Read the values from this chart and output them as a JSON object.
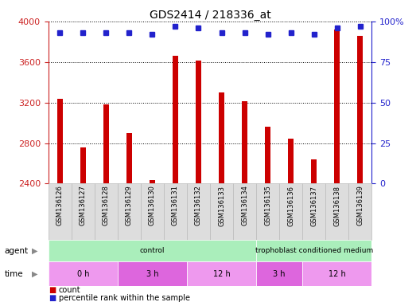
{
  "title": "GDS2414 / 218336_at",
  "samples": [
    "GSM136126",
    "GSM136127",
    "GSM136128",
    "GSM136129",
    "GSM136130",
    "GSM136131",
    "GSM136132",
    "GSM136133",
    "GSM136134",
    "GSM136135",
    "GSM136136",
    "GSM136137",
    "GSM136138",
    "GSM136139"
  ],
  "counts": [
    3240,
    2760,
    3185,
    2900,
    2435,
    3660,
    3610,
    3300,
    3210,
    2960,
    2840,
    2640,
    3920,
    3860
  ],
  "percentile_ranks": [
    93,
    93,
    93,
    93,
    92,
    97,
    96,
    93,
    93,
    92,
    93,
    92,
    96,
    97
  ],
  "ylim_left": [
    2400,
    4000
  ],
  "ylim_right": [
    0,
    100
  ],
  "yticks_left": [
    2400,
    2800,
    3200,
    3600,
    4000
  ],
  "yticks_right": [
    0,
    25,
    50,
    75,
    100
  ],
  "bar_color": "#cc0000",
  "dot_color": "#2222cc",
  "bar_width": 0.25,
  "agent_group_data": [
    [
      0,
      9,
      "control",
      "#aaeebb"
    ],
    [
      9,
      14,
      "trophoblast conditioned medium",
      "#aaeebb"
    ]
  ],
  "time_group_data": [
    [
      0,
      3,
      "0 h",
      "#ee99ee"
    ],
    [
      3,
      6,
      "3 h",
      "#dd66dd"
    ],
    [
      6,
      9,
      "12 h",
      "#ee99ee"
    ],
    [
      9,
      11,
      "3 h",
      "#dd66dd"
    ],
    [
      11,
      14,
      "12 h",
      "#ee99ee"
    ]
  ],
  "agent_label": "agent",
  "time_label": "time",
  "legend_count_label": "count",
  "legend_percentile_label": "percentile rank within the sample",
  "tick_label_color_left": "#cc2222",
  "tick_label_color_right": "#2222cc",
  "background_color": "#ffffff"
}
